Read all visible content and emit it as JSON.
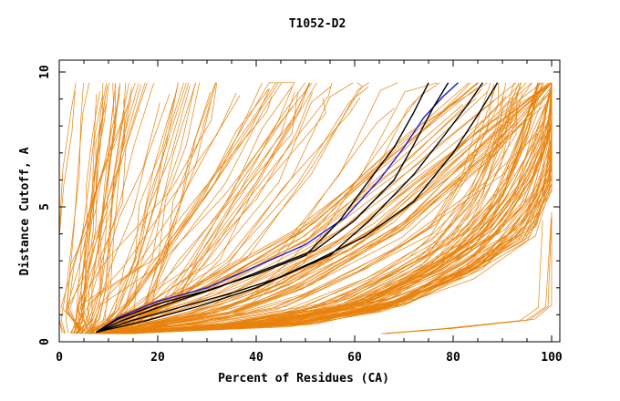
{
  "chart_data": {
    "type": "line",
    "title": "T1052-D2",
    "xlabel": "Percent of Residues (CA)",
    "ylabel": "Distance Cutoff, A",
    "xlim": [
      0,
      100
    ],
    "ylim": [
      0,
      10
    ],
    "x_ticks": [
      0,
      20,
      40,
      60,
      80,
      100
    ],
    "y_ticks": [
      0,
      5,
      10
    ],
    "grid": false,
    "legend": "none",
    "colors": {
      "models": "#e8820c",
      "highlight": "#1a1ad6",
      "reference": "#000000"
    },
    "bundle_series": [
      {
        "points": [
          [
            3,
            0.3
          ],
          [
            4,
            0.8
          ],
          [
            5,
            2
          ],
          [
            6,
            4
          ],
          [
            7,
            6
          ],
          [
            8,
            8
          ],
          [
            9,
            9.6
          ]
        ],
        "count": 22,
        "spread": [
          6,
          0.08
        ]
      },
      {
        "points": [
          [
            7,
            0.3
          ],
          [
            9,
            1.2
          ],
          [
            12,
            3
          ],
          [
            15,
            5
          ],
          [
            18,
            7
          ],
          [
            22,
            9.6
          ]
        ],
        "count": 26,
        "spread": [
          10,
          0.08
        ]
      },
      {
        "points": [
          [
            8,
            0.3
          ],
          [
            14,
            1.5
          ],
          [
            20,
            3
          ],
          [
            30,
            5.5
          ],
          [
            38,
            8
          ],
          [
            42,
            9.6
          ]
        ],
        "count": 20,
        "spread": [
          14,
          0.1
        ]
      },
      {
        "points": [
          [
            8,
            0.3
          ],
          [
            20,
            1.5
          ],
          [
            32,
            3
          ],
          [
            45,
            6
          ],
          [
            55,
            9
          ],
          [
            58,
            9.6
          ]
        ],
        "count": 16,
        "spread": [
          18,
          0.1
        ]
      },
      {
        "points": [
          [
            10,
            0.4
          ],
          [
            25,
            1
          ],
          [
            40,
            2
          ],
          [
            60,
            4
          ],
          [
            80,
            7
          ],
          [
            95,
            9.6
          ]
        ],
        "count": 40,
        "spread": [
          12,
          0.15
        ]
      },
      {
        "points": [
          [
            10,
            0.3
          ],
          [
            35,
            0.6
          ],
          [
            55,
            1.2
          ],
          [
            72,
            2.5
          ],
          [
            85,
            4
          ],
          [
            92,
            6
          ],
          [
            97,
            8
          ],
          [
            99,
            9.6
          ]
        ],
        "count": 50,
        "spread": [
          12,
          0.1
        ]
      },
      {
        "points": [
          [
            12,
            0.3
          ],
          [
            45,
            0.7
          ],
          [
            65,
            1.5
          ],
          [
            80,
            3
          ],
          [
            90,
            5
          ],
          [
            96,
            7.5
          ],
          [
            99,
            9.6
          ]
        ],
        "count": 30,
        "spread": [
          8,
          0.1
        ]
      },
      {
        "points": [
          [
            66,
            0.3
          ],
          [
            80,
            0.5
          ],
          [
            95,
            0.8
          ],
          [
            99,
            1.3
          ],
          [
            100,
            4.6
          ]
        ],
        "count": 4,
        "spread": [
          2,
          0.05
        ]
      }
    ],
    "series": [
      {
        "color": "#1a1ad6",
        "points": [
          [
            7.5,
            0.35
          ],
          [
            12,
            0.9
          ],
          [
            20,
            1.5
          ],
          [
            30,
            2.0
          ],
          [
            40,
            2.8
          ],
          [
            50,
            3.6
          ],
          [
            58,
            4.6
          ],
          [
            65,
            6.0
          ],
          [
            70,
            7.2
          ],
          [
            74,
            8.3
          ],
          [
            78,
            9.1
          ],
          [
            81,
            9.6
          ]
        ]
      },
      {
        "color": "#000000",
        "points": [
          [
            7.5,
            0.35
          ],
          [
            12,
            0.85
          ],
          [
            20,
            1.4
          ],
          [
            30,
            1.9
          ],
          [
            40,
            2.5
          ],
          [
            50,
            3.2
          ],
          [
            57,
            4.5
          ],
          [
            63,
            6.0
          ],
          [
            68,
            7.2
          ],
          [
            72,
            8.5
          ],
          [
            75,
            9.6
          ]
        ]
      },
      {
        "color": "#000000",
        "points": [
          [
            7.5,
            0.35
          ],
          [
            13,
            0.8
          ],
          [
            22,
            1.4
          ],
          [
            32,
            2.0
          ],
          [
            42,
            2.7
          ],
          [
            52,
            3.4
          ],
          [
            60,
            4.5
          ],
          [
            68,
            6.0
          ],
          [
            72,
            7.3
          ],
          [
            76,
            8.7
          ],
          [
            79,
            9.6
          ]
        ]
      },
      {
        "color": "#000000",
        "points": [
          [
            7.5,
            0.35
          ],
          [
            15,
            0.8
          ],
          [
            25,
            1.3
          ],
          [
            35,
            1.8
          ],
          [
            45,
            2.4
          ],
          [
            55,
            3.2
          ],
          [
            63,
            4.5
          ],
          [
            72,
            6.2
          ],
          [
            78,
            7.6
          ],
          [
            83,
            8.8
          ],
          [
            86,
            9.6
          ]
        ]
      },
      {
        "color": "#000000",
        "points": [
          [
            7.5,
            0.35
          ],
          [
            18,
            0.8
          ],
          [
            28,
            1.3
          ],
          [
            40,
            2.0
          ],
          [
            52,
            3.0
          ],
          [
            62,
            3.9
          ],
          [
            72,
            5.2
          ],
          [
            80,
            7.0
          ],
          [
            85,
            8.4
          ],
          [
            89,
            9.6
          ]
        ]
      }
    ]
  }
}
